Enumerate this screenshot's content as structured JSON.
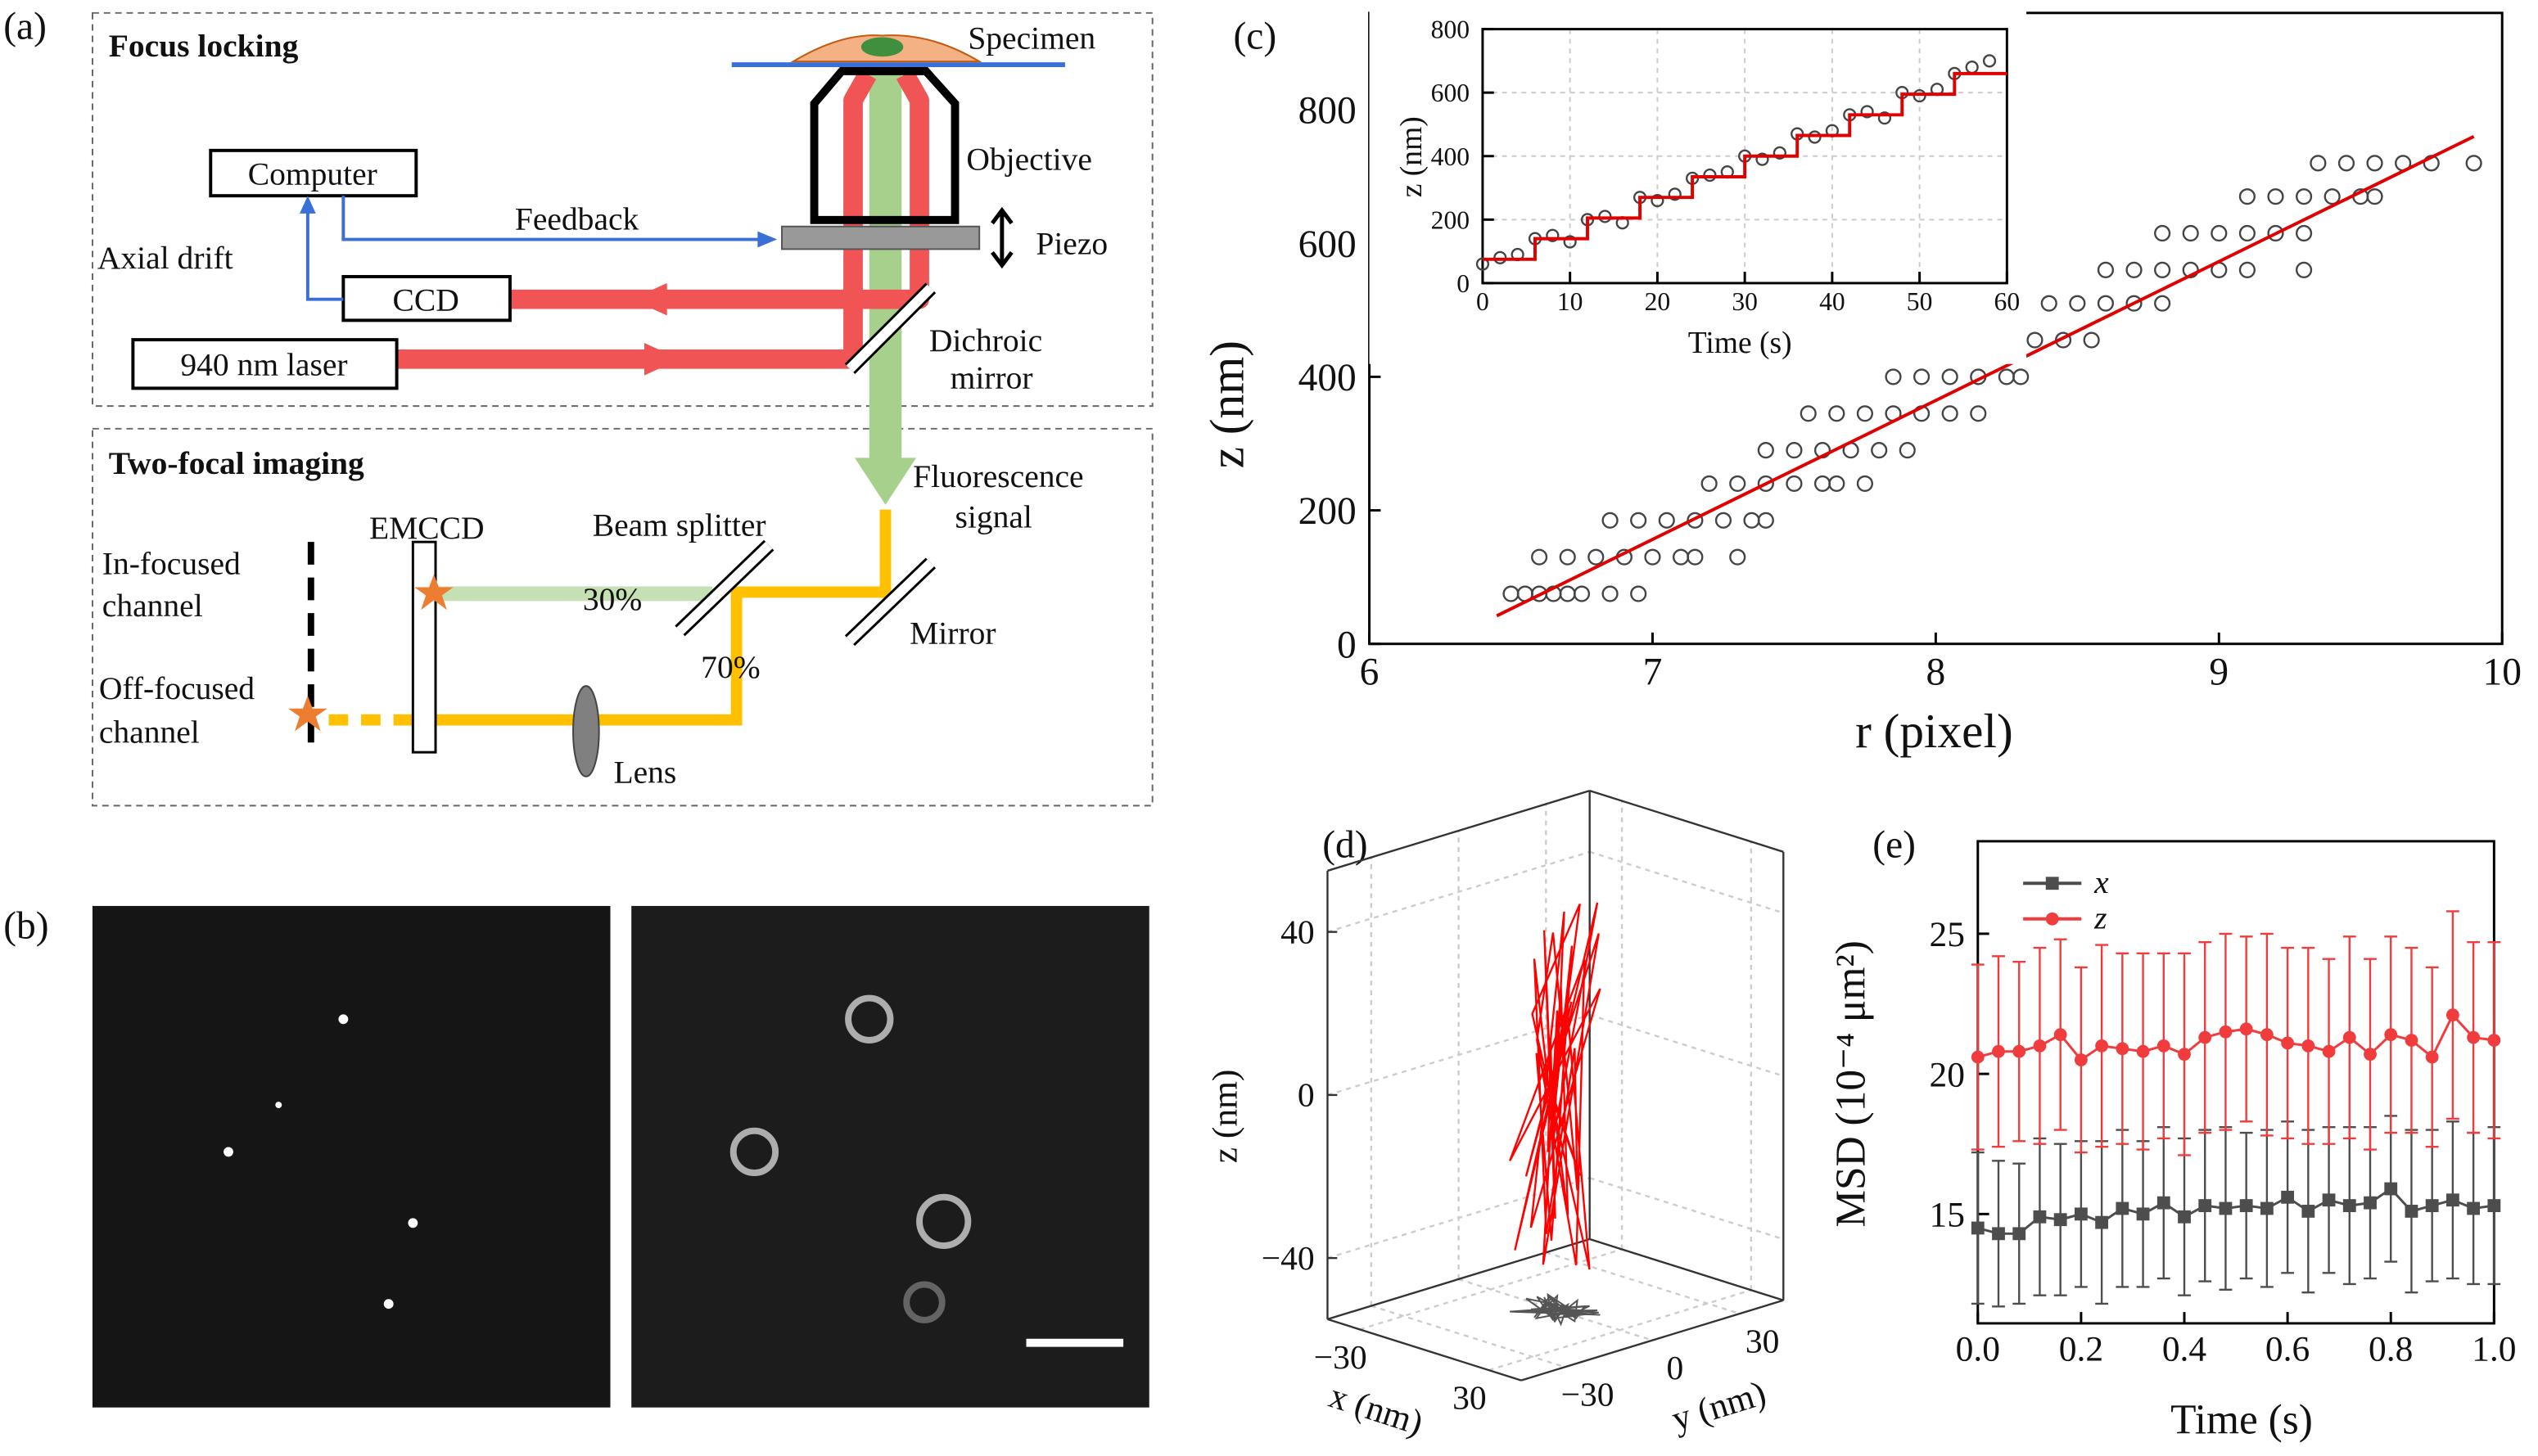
{
  "panel_labels": [
    "(a)",
    "(b)",
    "(c)",
    "(d)",
    "(e)"
  ],
  "diagram": {
    "sections": [
      "Focus locking",
      "Two-focal imaging"
    ],
    "labels": [
      "Specimen",
      "Objective",
      "Computer",
      "Feedback",
      "Piezo",
      "Axial drift",
      "CCD",
      "940 nm laser",
      "Dichroic",
      "mirror",
      "Fluorescence",
      "signal",
      "EMCCD",
      "Beam splitter",
      "In-focused",
      "channel",
      "30%",
      "Mirror",
      "70%",
      "Off-focused",
      "channel",
      "Lens"
    ]
  },
  "chart_data": [
    {
      "type": "scatter",
      "xlabel": "r (pixel)",
      "ylabel": "z (nm)",
      "xlim": [
        6,
        10
      ],
      "ylim": [
        0,
        945
      ],
      "xticks": [
        6,
        7,
        8,
        9,
        10
      ],
      "yticks": [
        0,
        200,
        400,
        600,
        800
      ],
      "grid": false,
      "series": [
        {
          "mode": "markers",
          "color": "#444444",
          "x": [
            6.5,
            6.55,
            6.6,
            6.65,
            6.7,
            6.75,
            6.85,
            6.95,
            6.6,
            6.7,
            6.8,
            6.9,
            7.0,
            7.1,
            7.15,
            7.3,
            6.85,
            6.95,
            7.05,
            7.15,
            7.25,
            7.35,
            7.4,
            7.2,
            7.3,
            7.4,
            7.5,
            7.6,
            7.65,
            7.75,
            7.4,
            7.5,
            7.6,
            7.7,
            7.8,
            7.9,
            7.55,
            7.65,
            7.75,
            7.85,
            7.95,
            8.05,
            8.15,
            7.85,
            7.95,
            8.05,
            8.15,
            8.25,
            8.3,
            7.95,
            8.15,
            8.25,
            8.35,
            8.45,
            8.55,
            8.4,
            8.5,
            8.6,
            8.7,
            8.8,
            8.6,
            8.7,
            8.8,
            8.9,
            9.0,
            9.1,
            9.3,
            8.8,
            8.9,
            9.0,
            9.1,
            9.2,
            9.3,
            9.1,
            9.2,
            9.3,
            9.4,
            9.5,
            9.55,
            9.35,
            9.45,
            9.55,
            9.65,
            9.75,
            9.9
          ],
          "y": [
            75,
            75,
            75,
            75,
            75,
            75,
            75,
            75,
            130,
            130,
            130,
            130,
            130,
            130,
            130,
            130,
            185,
            185,
            185,
            185,
            185,
            185,
            185,
            240,
            240,
            240,
            240,
            240,
            240,
            240,
            290,
            290,
            290,
            290,
            290,
            290,
            345,
            345,
            345,
            345,
            345,
            345,
            345,
            400,
            400,
            400,
            400,
            400,
            400,
            455,
            455,
            455,
            455,
            455,
            455,
            510,
            510,
            510,
            510,
            510,
            560,
            560,
            560,
            560,
            560,
            560,
            560,
            615,
            615,
            615,
            615,
            615,
            615,
            670,
            670,
            670,
            670,
            670,
            670,
            720,
            720,
            720,
            720,
            720,
            720
          ]
        },
        {
          "mode": "line",
          "color": "#e00000",
          "x": [
            6.45,
            9.9
          ],
          "y": [
            42,
            760
          ]
        }
      ]
    },
    {
      "type": "scatter",
      "xlabel": "Time (s)",
      "ylabel": "z (nm)",
      "xlim": [
        0,
        60
      ],
      "ylim": [
        0,
        800
      ],
      "xticks": [
        0,
        10,
        20,
        30,
        40,
        50,
        60
      ],
      "yticks": [
        0,
        200,
        400,
        600,
        800
      ],
      "grid": true,
      "series": [
        {
          "mode": "markers",
          "color": "#444444",
          "x": [
            0,
            2,
            4,
            6,
            8,
            10,
            12,
            14,
            16,
            18,
            20,
            22,
            24,
            26,
            28,
            30,
            32,
            34,
            36,
            38,
            40,
            42,
            44,
            46,
            48,
            50,
            52,
            54,
            56,
            58
          ],
          "y": [
            60,
            80,
            90,
            140,
            150,
            130,
            200,
            210,
            190,
            270,
            260,
            280,
            330,
            340,
            350,
            400,
            390,
            410,
            470,
            460,
            480,
            530,
            540,
            520,
            600,
            590,
            610,
            660,
            680,
            700
          ]
        },
        {
          "mode": "line",
          "color": "#e00000",
          "x": [
            0,
            6,
            6,
            12,
            12,
            18,
            18,
            24,
            24,
            30,
            30,
            36,
            36,
            42,
            42,
            48,
            48,
            54,
            54,
            60
          ],
          "y": [
            75,
            75,
            140,
            140,
            205,
            205,
            270,
            270,
            335,
            335,
            400,
            400,
            465,
            465,
            530,
            530,
            595,
            595,
            660,
            660
          ]
        }
      ]
    },
    {
      "type": "line3d",
      "xlabel": "x (nm)",
      "ylabel": "y (nm)",
      "zlabel": "z (nm)",
      "xlim": [
        -45,
        45
      ],
      "ylim": [
        -45,
        45
      ],
      "zlim": [
        -55,
        55
      ],
      "xticks": [
        {
          "value": -30,
          "label": "−30"
        },
        30
      ],
      "yticks": [
        {
          "value": -30,
          "label": "−30"
        },
        0,
        30
      ],
      "zticks": [
        40,
        0,
        {
          "value": -40,
          "label": "−40"
        }
      ],
      "color": "#ff0000",
      "shadow_color": "#555555",
      "x": [
        -5,
        8,
        -12,
        3,
        10,
        -8,
        2,
        -15,
        6,
        12,
        -3,
        -10,
        9,
        0,
        -6,
        14,
        -9,
        4,
        11,
        -14,
        7,
        -2,
        13,
        -7,
        1,
        -11,
        8,
        5,
        -4,
        10,
        -13,
        3,
        -1,
        12,
        -6,
        9,
        -10,
        2,
        6,
        -3
      ],
      "y": [
        2,
        -6,
        5,
        -3,
        7,
        -8,
        4,
        1,
        -5,
        6,
        -2,
        8,
        -7,
        3,
        -4,
        5,
        -9,
        7,
        -1,
        4,
        -6,
        9,
        -3,
        2,
        -8,
        6,
        -2,
        8,
        -5,
        1,
        7,
        -4,
        5,
        -7,
        3,
        -1,
        6,
        -8,
        4,
        0
      ],
      "z": [
        10,
        -30,
        35,
        -12,
        45,
        -40,
        20,
        -25,
        5,
        38,
        -44,
        15,
        -8,
        42,
        -35,
        25,
        -18,
        30,
        -42,
        8,
        40,
        -28,
        12,
        -38,
        33,
        -5,
        22,
        -46,
        18,
        46,
        -20,
        3,
        -33,
        28,
        -15,
        36,
        -41,
        10,
        -22,
        0
      ]
    },
    {
      "type": "line",
      "xlabel": "Time (s)",
      "ylabel": "MSD (10⁻⁴ μm²)",
      "xlim": [
        0,
        1
      ],
      "ylim": [
        11.1,
        28.3
      ],
      "xticks": [
        {
          "value": 0,
          "label": "0.0"
        },
        0.2,
        0.4,
        0.6,
        0.8,
        {
          "value": 1,
          "label": "1.0"
        }
      ],
      "yticks": [
        15,
        20,
        25
      ],
      "legend": "upper left",
      "x": [
        0,
        0.04,
        0.08,
        0.12,
        0.16,
        0.2,
        0.24,
        0.28,
        0.32,
        0.36,
        0.4,
        0.44,
        0.48,
        0.52,
        0.56,
        0.6,
        0.64,
        0.68,
        0.72,
        0.76,
        0.8,
        0.84,
        0.88,
        0.92,
        0.96,
        1
      ],
      "series": [
        {
          "name": "x",
          "color": "#4d4d4d",
          "marker": "square",
          "values": [
            14.5,
            14.3,
            14.3,
            14.9,
            14.8,
            15.0,
            14.7,
            15.2,
            15.0,
            15.4,
            14.9,
            15.3,
            15.2,
            15.3,
            15.2,
            15.6,
            15.1,
            15.5,
            15.3,
            15.4,
            15.9,
            15.1,
            15.3,
            15.5,
            15.2,
            15.3
          ],
          "errors": [
            2.7,
            2.6,
            2.5,
            2.8,
            2.7,
            2.6,
            2.9,
            2.8,
            2.6,
            2.7,
            2.8,
            2.7,
            2.9,
            2.6,
            2.8,
            2.7,
            2.9,
            2.6,
            2.8,
            2.7,
            2.6,
            2.9,
            2.7,
            2.8,
            2.7,
            2.8
          ]
        },
        {
          "name": "z",
          "color": "#f03c3c",
          "marker": "circle",
          "values": [
            20.6,
            20.8,
            20.8,
            21.0,
            21.4,
            20.5,
            21.0,
            20.9,
            20.8,
            21.0,
            20.7,
            21.3,
            21.5,
            21.6,
            21.4,
            21.1,
            21.0,
            20.8,
            21.3,
            20.7,
            21.4,
            21.2,
            20.6,
            22.1,
            21.3,
            21.2
          ],
          "errors": [
            3.3,
            3.4,
            3.2,
            3.5,
            3.4,
            3.3,
            3.6,
            3.4,
            3.5,
            3.3,
            3.6,
            3.4,
            3.5,
            3.3,
            3.6,
            3.4,
            3.5,
            3.3,
            3.6,
            3.4,
            3.5,
            3.3,
            3.2,
            3.7,
            3.4,
            3.5
          ]
        }
      ]
    }
  ]
}
